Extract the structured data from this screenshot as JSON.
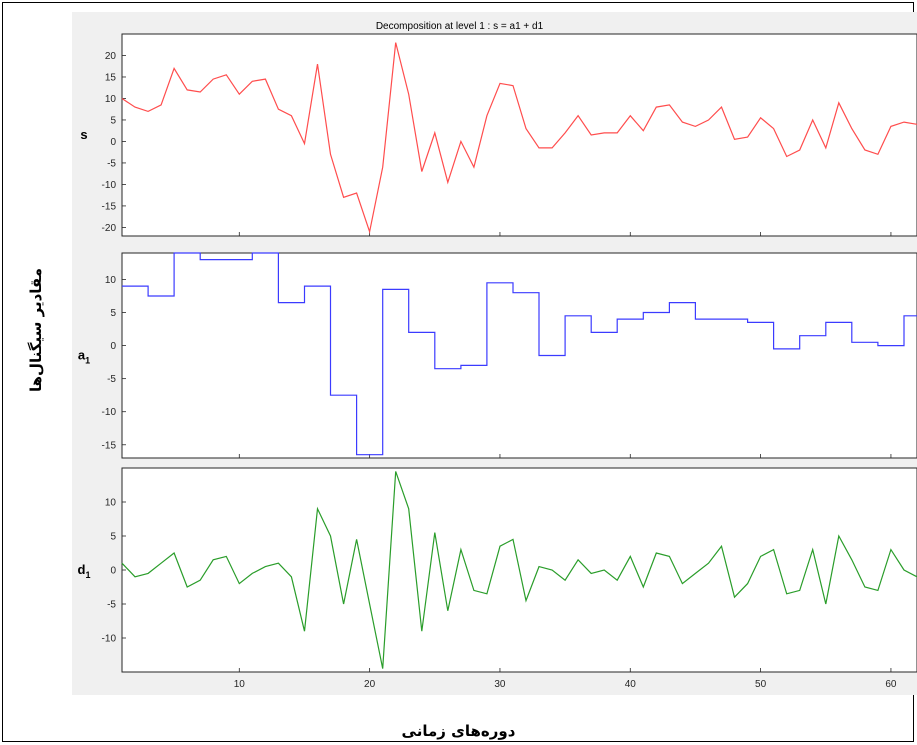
{
  "figure": {
    "title": "Decomposition at level 1 : s = a1 + d1",
    "ylabel": "مقادیر سیگنال‌ها",
    "xlabel": "دوره‌های زمانی"
  },
  "chart_data": [
    {
      "type": "line",
      "name": "s",
      "label": "s",
      "color": "#ff4d4d",
      "step": false,
      "xlim": [
        1,
        62
      ],
      "ylim": [
        -22,
        25
      ],
      "yticks": [
        20,
        15,
        10,
        5,
        0,
        -5,
        -10,
        -15,
        -20
      ],
      "x": [
        1,
        2,
        3,
        4,
        5,
        6,
        7,
        8,
        9,
        10,
        11,
        12,
        13,
        14,
        15,
        16,
        17,
        18,
        19,
        20,
        21,
        22,
        23,
        24,
        25,
        26,
        27,
        28,
        29,
        30,
        31,
        32,
        33,
        34,
        35,
        36,
        37,
        38,
        39,
        40,
        41,
        42,
        43,
        44,
        45,
        46,
        47,
        48,
        49,
        50,
        51,
        52,
        53,
        54,
        55,
        56,
        57,
        58,
        59,
        60,
        61,
        62
      ],
      "y": [
        10,
        8,
        7,
        8.5,
        17,
        12,
        11.5,
        14.5,
        15.5,
        11,
        14,
        14.5,
        7.5,
        6,
        -0.5,
        18,
        -3,
        -13,
        -12,
        -21,
        -6,
        23,
        11,
        -7,
        2,
        -9.5,
        0,
        -6,
        6,
        13.5,
        13,
        3,
        -1.5,
        -1.5,
        2,
        6,
        1.5,
        2,
        2,
        6,
        2.5,
        8,
        8.5,
        4.5,
        3.5,
        5,
        8,
        0.5,
        1,
        5.5,
        3,
        -3.5,
        -2,
        5,
        -1.5,
        9,
        3,
        -2,
        -3,
        3.5,
        4.5,
        4
      ]
    },
    {
      "type": "line",
      "name": "a",
      "label": "a",
      "sub": "1",
      "color": "#3b3bff",
      "step": true,
      "xlim": [
        1,
        62
      ],
      "ylim": [
        -17,
        14
      ],
      "yticks": [
        10,
        5,
        0,
        -5,
        -10,
        -15
      ],
      "x": [
        1,
        3,
        5,
        7,
        9,
        11,
        13,
        15,
        17,
        19,
        21,
        23,
        25,
        27,
        29,
        31,
        33,
        35,
        37,
        39,
        41,
        43,
        45,
        47,
        49,
        51,
        53,
        55,
        57,
        59,
        61
      ],
      "y": [
        9,
        7.5,
        14,
        13,
        13,
        14,
        6.5,
        9,
        -7.5,
        -16.5,
        8.5,
        2,
        -3.5,
        -3,
        9.5,
        8,
        -1.5,
        4.5,
        2,
        4,
        5,
        6.5,
        4,
        4,
        3.5,
        -0.5,
        1.5,
        3.5,
        0.5,
        0,
        4.5
      ]
    },
    {
      "type": "line",
      "name": "d",
      "label": "d",
      "sub": "1",
      "color": "#2a9d2a",
      "step": false,
      "xlim": [
        1,
        62
      ],
      "ylim": [
        -15,
        15
      ],
      "yticks": [
        10,
        5,
        0,
        -5,
        -10
      ],
      "x": [
        1,
        2,
        3,
        4,
        5,
        6,
        7,
        8,
        9,
        10,
        11,
        12,
        13,
        14,
        15,
        16,
        17,
        18,
        19,
        20,
        21,
        22,
        23,
        24,
        25,
        26,
        27,
        28,
        29,
        30,
        31,
        32,
        33,
        34,
        35,
        36,
        37,
        38,
        39,
        40,
        41,
        42,
        43,
        44,
        45,
        46,
        47,
        48,
        49,
        50,
        51,
        52,
        53,
        54,
        55,
        56,
        57,
        58,
        59,
        60,
        61,
        62
      ],
      "y": [
        1,
        -1,
        -0.5,
        1,
        2.5,
        -2.5,
        -1.5,
        1.5,
        2,
        -2,
        -0.5,
        0.5,
        1,
        -1,
        -9,
        9,
        5,
        -5,
        4.5,
        -5,
        -14.5,
        14.5,
        9,
        -9,
        5.5,
        -6,
        3,
        -3,
        -3.5,
        3.5,
        4.5,
        -4.5,
        0.5,
        0,
        -1.5,
        1.5,
        -0.5,
        0,
        -1.5,
        2,
        -2.5,
        2.5,
        2,
        -2,
        -0.5,
        1,
        3.5,
        -4,
        -2,
        2,
        3,
        -3.5,
        -3,
        3,
        -5,
        5,
        1.5,
        -2.5,
        -3,
        3,
        0,
        -1
      ]
    }
  ],
  "xaxis": {
    "ticks": [
      10,
      20,
      30,
      40,
      50,
      60
    ]
  }
}
